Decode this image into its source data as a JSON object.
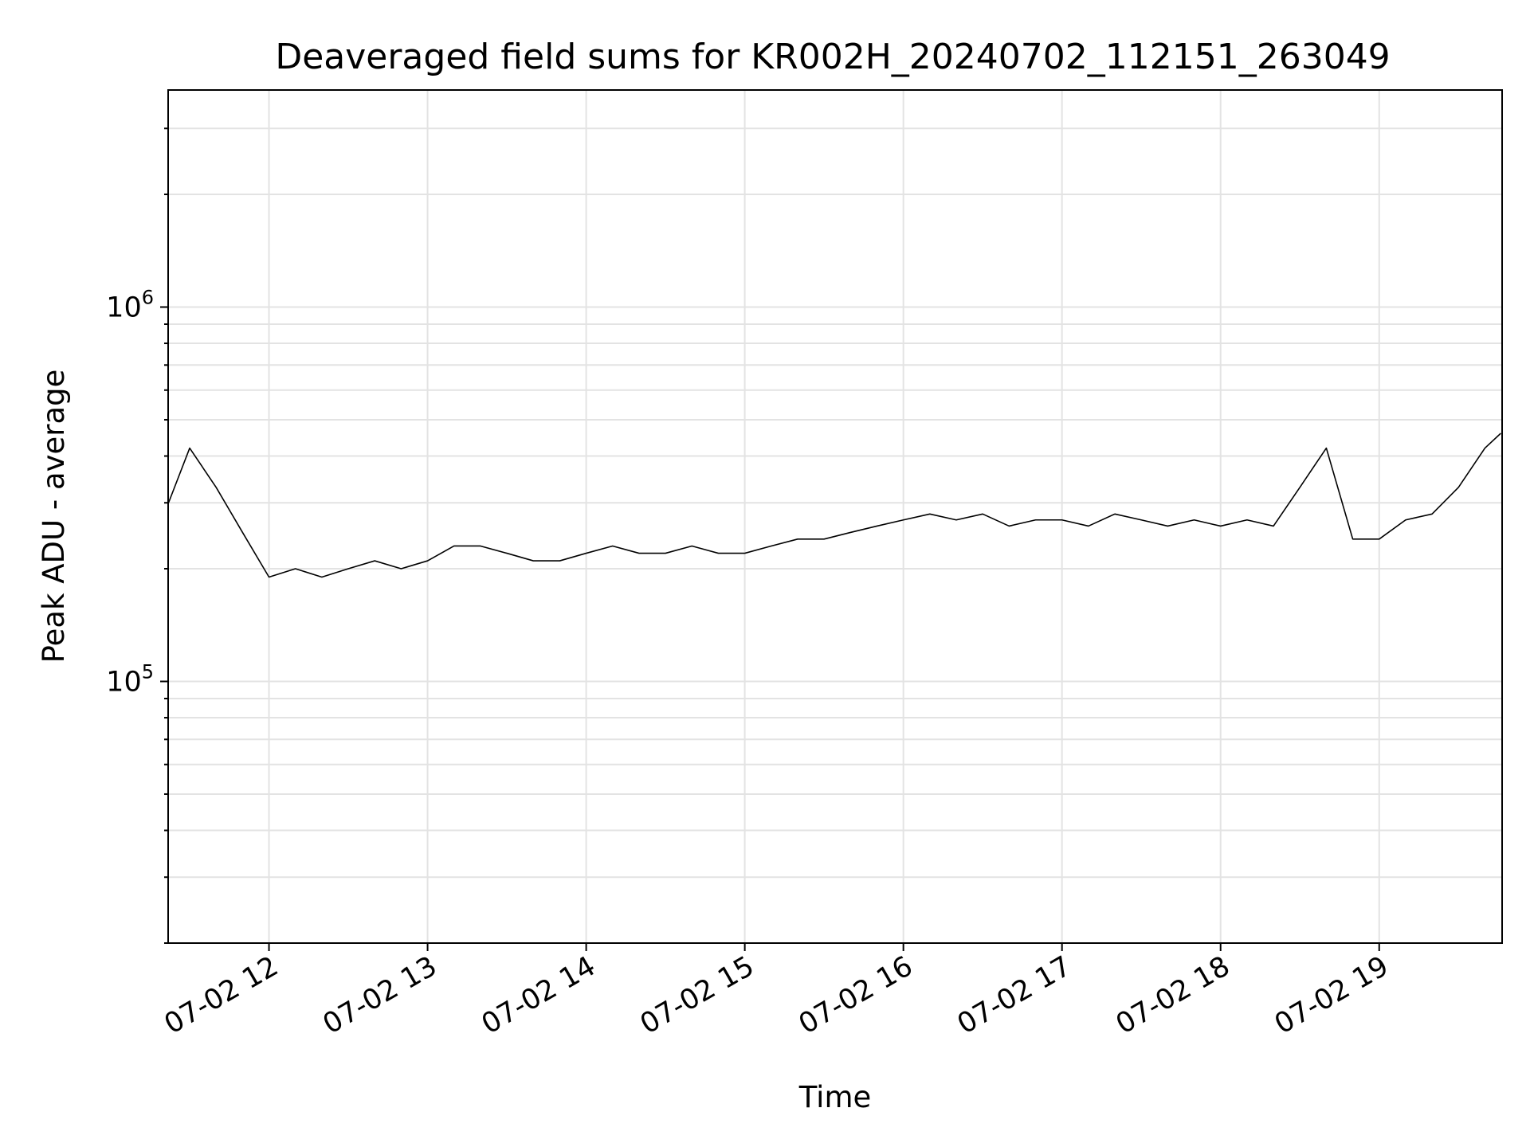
{
  "chart_data": {
    "type": "line",
    "title": "Deaveraged field sums for KR002H_20240702_112151_263049",
    "xlabel": "Time",
    "ylabel": "Peak ADU - average",
    "xlim": [
      "07-02 11:21:51",
      "07-02 19:46:30"
    ],
    "ylim": [
      20000,
      3800000
    ],
    "yscale": "log",
    "grid": true,
    "line_color": "#000000",
    "x_ticks": [
      {
        "label": "07-02 12",
        "x": "07-02 12:00"
      },
      {
        "label": "07-02 13",
        "x": "07-02 13:00"
      },
      {
        "label": "07-02 14",
        "x": "07-02 14:00"
      },
      {
        "label": "07-02 15",
        "x": "07-02 15:00"
      },
      {
        "label": "07-02 16",
        "x": "07-02 16:00"
      },
      {
        "label": "07-02 17",
        "x": "07-02 17:00"
      },
      {
        "label": "07-02 18",
        "x": "07-02 18:00"
      },
      {
        "label": "07-02 19",
        "x": "07-02 19:00"
      }
    ],
    "y_ticks": [
      {
        "base": "10",
        "exp": "5",
        "value": 100000
      },
      {
        "base": "10",
        "exp": "6",
        "value": 1000000
      }
    ],
    "series": [
      {
        "points": [
          [
            "07-02 11:22",
            300000
          ],
          [
            "07-02 11:30",
            420000
          ],
          [
            "07-02 11:40",
            330000
          ],
          [
            "07-02 11:50",
            250000
          ],
          [
            "07-02 12:00",
            190000
          ],
          [
            "07-02 12:10",
            200000
          ],
          [
            "07-02 12:20",
            190000
          ],
          [
            "07-02 12:30",
            200000
          ],
          [
            "07-02 12:40",
            210000
          ],
          [
            "07-02 12:50",
            200000
          ],
          [
            "07-02 13:00",
            210000
          ],
          [
            "07-02 13:10",
            230000
          ],
          [
            "07-02 13:20",
            230000
          ],
          [
            "07-02 13:30",
            220000
          ],
          [
            "07-02 13:40",
            210000
          ],
          [
            "07-02 13:50",
            210000
          ],
          [
            "07-02 14:00",
            220000
          ],
          [
            "07-02 14:10",
            230000
          ],
          [
            "07-02 14:20",
            220000
          ],
          [
            "07-02 14:30",
            220000
          ],
          [
            "07-02 14:40",
            230000
          ],
          [
            "07-02 14:50",
            220000
          ],
          [
            "07-02 15:00",
            220000
          ],
          [
            "07-02 15:10",
            230000
          ],
          [
            "07-02 15:20",
            240000
          ],
          [
            "07-02 15:30",
            240000
          ],
          [
            "07-02 15:40",
            250000
          ],
          [
            "07-02 15:50",
            260000
          ],
          [
            "07-02 16:00",
            270000
          ],
          [
            "07-02 16:10",
            280000
          ],
          [
            "07-02 16:20",
            270000
          ],
          [
            "07-02 16:30",
            280000
          ],
          [
            "07-02 16:40",
            260000
          ],
          [
            "07-02 16:50",
            270000
          ],
          [
            "07-02 17:00",
            270000
          ],
          [
            "07-02 17:10",
            260000
          ],
          [
            "07-02 17:20",
            280000
          ],
          [
            "07-02 17:30",
            270000
          ],
          [
            "07-02 17:40",
            260000
          ],
          [
            "07-02 17:50",
            270000
          ],
          [
            "07-02 18:00",
            260000
          ],
          [
            "07-02 18:10",
            270000
          ],
          [
            "07-02 18:20",
            260000
          ],
          [
            "07-02 18:30",
            330000
          ],
          [
            "07-02 18:40",
            420000
          ],
          [
            "07-02 18:50",
            240000
          ],
          [
            "07-02 19:00",
            240000
          ],
          [
            "07-02 19:10",
            270000
          ],
          [
            "07-02 19:20",
            280000
          ],
          [
            "07-02 19:30",
            330000
          ],
          [
            "07-02 19:40",
            420000
          ],
          [
            "07-02 19:46",
            460000
          ]
        ]
      }
    ]
  }
}
